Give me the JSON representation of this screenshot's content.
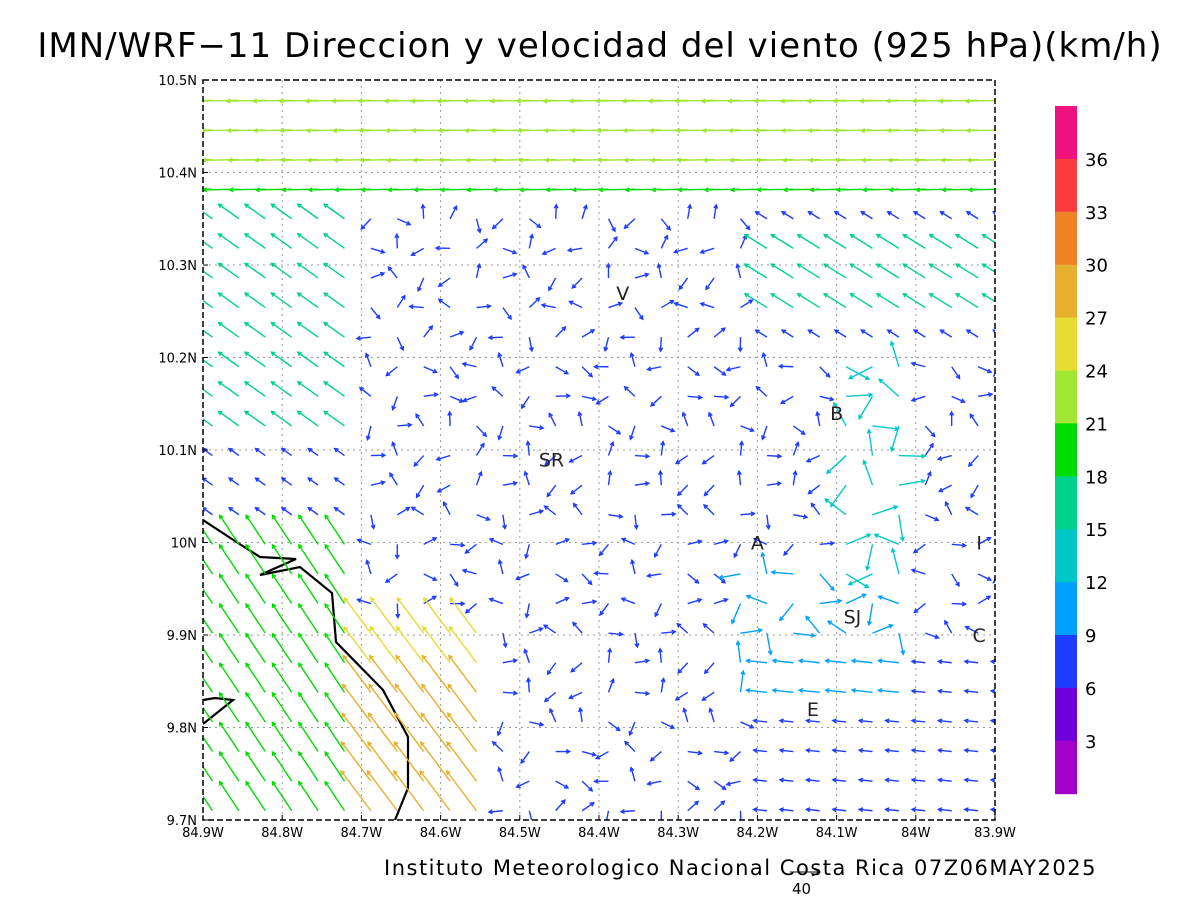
{
  "title": "IMN/WRF−11 Direccion y velocidad del viento (925 hPa)(km/h)",
  "footer": "Instituto Meteorologico Nacional Costa Rica 07Z06MAY2025",
  "reference_vector_label": "40",
  "map": {
    "lon_range": [
      -84.9,
      -83.9
    ],
    "lat_range": [
      9.7,
      10.5
    ],
    "grid": "dotted",
    "lon_ticks": [
      "84.9W",
      "84.8W",
      "84.7W",
      "84.6W",
      "84.5W",
      "84.4W",
      "84.3W",
      "84.2W",
      "84.1W",
      "84W",
      "83.9W"
    ],
    "lat_ticks": [
      "9.7N",
      "9.8N",
      "9.9N",
      "10N",
      "10.1N",
      "10.2N",
      "10.3N",
      "10.4N",
      "10.5N"
    ],
    "cities": [
      {
        "label": "V",
        "lon": -84.37,
        "lat": 10.27
      },
      {
        "label": "B",
        "lon": -84.1,
        "lat": 10.14
      },
      {
        "label": "SR",
        "lon": -84.46,
        "lat": 10.09
      },
      {
        "label": "A",
        "lon": -84.2,
        "lat": 10.0
      },
      {
        "label": "I",
        "lon": -83.92,
        "lat": 10.0
      },
      {
        "label": "SJ",
        "lon": -84.08,
        "lat": 9.92
      },
      {
        "label": "C",
        "lon": -83.92,
        "lat": 9.9
      },
      {
        "label": "E",
        "lon": -84.13,
        "lat": 9.82
      }
    ]
  },
  "colorbar": {
    "labels": [
      "36",
      "33",
      "30",
      "27",
      "24",
      "21",
      "18",
      "15",
      "12",
      "9",
      "6",
      "3"
    ],
    "colors": [
      "#f0127f",
      "#fa3c3c",
      "#f08228",
      "#e6af2d",
      "#e6dc32",
      "#a0e632",
      "#00dc00",
      "#00d28c",
      "#00c8c8",
      "#00a0ff",
      "#1e3cff",
      "#6e00dc",
      "#a000c8"
    ]
  }
}
